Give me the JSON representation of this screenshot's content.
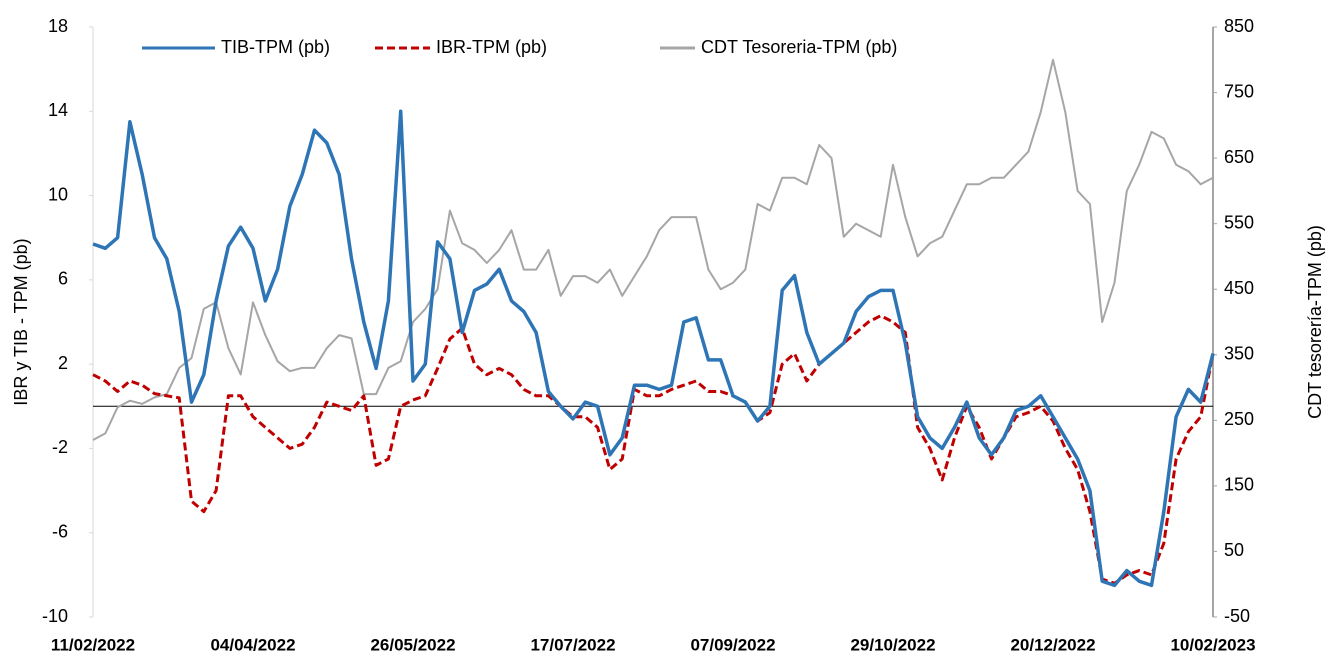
{
  "chart_data": {
    "type": "line",
    "categories": [
      "11/02/2022",
      null,
      null,
      null,
      null,
      null,
      null,
      null,
      null,
      null,
      null,
      null,
      null,
      "04/04/2022",
      null,
      null,
      null,
      null,
      null,
      null,
      null,
      null,
      null,
      null,
      null,
      null,
      "26/05/2022",
      null,
      null,
      null,
      null,
      null,
      null,
      null,
      null,
      null,
      null,
      null,
      null,
      "17/07/2022",
      null,
      null,
      null,
      null,
      null,
      null,
      null,
      null,
      null,
      null,
      null,
      null,
      "07/09/2022",
      null,
      null,
      null,
      null,
      null,
      null,
      null,
      null,
      null,
      null,
      null,
      null,
      "29/10/2022",
      null,
      null,
      null,
      null,
      null,
      null,
      null,
      null,
      null,
      null,
      null,
      null,
      "20/12/2022",
      null,
      null,
      null,
      null,
      null,
      null,
      null,
      null,
      null,
      null,
      null,
      null,
      "10/02/2023"
    ],
    "series": [
      {
        "name": "TIB-TPM (pb)",
        "color": "#2E75B6",
        "line_style": "solid",
        "axis": "y",
        "values": [
          7.7,
          7.5,
          8,
          13.5,
          11,
          8,
          7,
          4.5,
          0.2,
          1.5,
          5,
          7.6,
          8.5,
          7.5,
          5,
          6.5,
          9.5,
          11,
          13.1,
          12.5,
          11,
          7,
          4,
          1.8,
          5,
          14,
          1.2,
          2,
          7.8,
          7,
          3.5,
          5.5,
          5.8,
          6.5,
          5,
          4.5,
          3.5,
          0.7,
          0,
          -0.6,
          0.2,
          0,
          -2.3,
          -1.5,
          1,
          1,
          0.8,
          1,
          4,
          4.2,
          2.2,
          2.2,
          0.5,
          0.2,
          -0.7,
          0,
          5.5,
          6.2,
          3.5,
          2,
          2.5,
          3,
          4.5,
          5.2,
          5.5,
          5.5,
          3,
          -0.5,
          -1.5,
          -2,
          -1,
          0.2,
          -1.5,
          -2.3,
          -1.5,
          -0.2,
          0,
          0.5,
          -0.5,
          -1.5,
          -2.5,
          -4,
          -8.3,
          -8.5,
          -7.8,
          -8.3,
          -8.5,
          -5,
          -0.5,
          0.8,
          0.2,
          2.5
        ]
      },
      {
        "name": "IBR-TPM (pb)",
        "color": "#C00000",
        "line_style": "dashed",
        "axis": "y",
        "values": [
          1.5,
          1.2,
          0.7,
          1.2,
          1,
          0.6,
          0.5,
          0.4,
          -4.5,
          -5,
          -4,
          0.5,
          0.5,
          -0.5,
          -1,
          -1.5,
          -2,
          -1.8,
          -1,
          0.2,
          0,
          -0.2,
          0.5,
          -2.8,
          -2.5,
          0,
          0.3,
          0.5,
          1.8,
          3.2,
          3.7,
          2,
          1.5,
          1.8,
          1.5,
          0.8,
          0.5,
          0.5,
          0,
          -0.5,
          -0.5,
          -1,
          -3,
          -2.5,
          0.8,
          0.5,
          0.5,
          0.8,
          1,
          1.2,
          0.7,
          0.7,
          0.5,
          0.2,
          -0.7,
          -0.3,
          2,
          2.5,
          1.2,
          2,
          2.5,
          3,
          3.5,
          4,
          4.3,
          4,
          3.5,
          -1,
          -2,
          -3.5,
          -1.5,
          0,
          -1,
          -2.5,
          -1.5,
          -0.5,
          -0.3,
          0,
          -0.7,
          -2,
          -3,
          -5,
          -8.2,
          -8.4,
          -8,
          -7.8,
          -8,
          -6.5,
          -2.5,
          -1.2,
          -0.5,
          2.5
        ]
      },
      {
        "name": "CDT Tesoreria-TPM (pb)",
        "color": "#A6A6A6",
        "line_style": "solid",
        "axis": "y2",
        "values": [
          220,
          230,
          270,
          280,
          275,
          285,
          290,
          330,
          345,
          420,
          430,
          360,
          320,
          430,
          380,
          340,
          325,
          330,
          330,
          360,
          380,
          375,
          290,
          290,
          330,
          340,
          400,
          420,
          450,
          570,
          520,
          510,
          490,
          510,
          540,
          480,
          480,
          510,
          440,
          470,
          470,
          460,
          480,
          440,
          470,
          500,
          540,
          560,
          560,
          560,
          480,
          450,
          460,
          480,
          580,
          570,
          620,
          620,
          610,
          670,
          650,
          530,
          550,
          540,
          530,
          640,
          560,
          500,
          520,
          530,
          570,
          610,
          610,
          620,
          620,
          640,
          660,
          720,
          800,
          720,
          600,
          580,
          400,
          460,
          600,
          640,
          690,
          680,
          640,
          630,
          610,
          620
        ]
      }
    ],
    "ylabel": "IBR y TIB - TPM (pb)",
    "y2label": "CDT tesorería-TPM (pb)",
    "ylim": [
      -10,
      18
    ],
    "yticks": [
      -10,
      -6,
      -2,
      2,
      6,
      10,
      14,
      18
    ],
    "y2lim": [
      -50,
      850
    ],
    "y2ticks": [
      -50,
      50,
      150,
      250,
      350,
      450,
      550,
      650,
      750,
      850
    ],
    "grid": false,
    "legend": "top"
  }
}
